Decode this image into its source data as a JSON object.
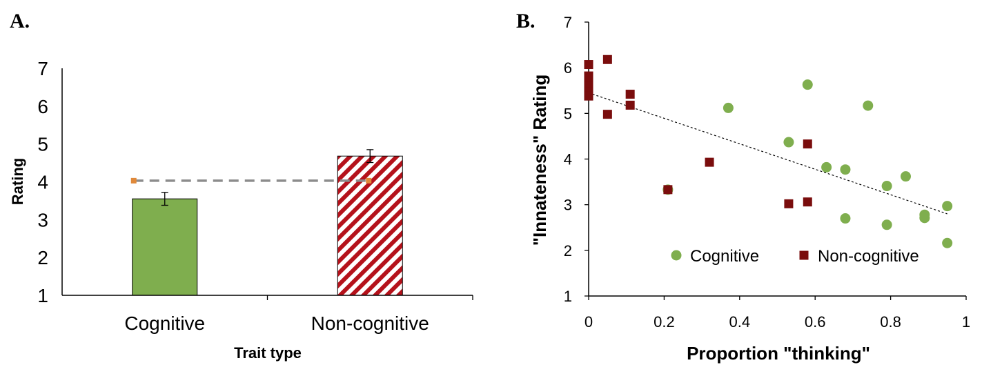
{
  "panels": {
    "a_label": "A.",
    "b_label": "B."
  },
  "chart_data": [
    {
      "type": "bar",
      "categories": [
        "Cognitive",
        "Non-cognitive"
      ],
      "values": [
        3.55,
        4.68
      ],
      "errors": [
        0.17,
        0.17
      ],
      "reference_line": {
        "values": [
          4.03,
          4.03
        ],
        "style": "dashed"
      },
      "xlabel": "Trait type",
      "ylabel": "Rating",
      "ylim": [
        1,
        7
      ],
      "yticks": [
        "1",
        "2",
        "3",
        "4",
        "5",
        "6",
        "7"
      ],
      "colors": {
        "cognitive": "#7fae4e",
        "non_cognitive_stripe": "#b5121b",
        "reference_marker": "#e0893a",
        "reference_line": "#8c8c8c"
      }
    },
    {
      "type": "scatter",
      "xlabel": "Proportion \"thinking\"",
      "ylabel": "\"Innateness\" Rating",
      "xlim": [
        0,
        1
      ],
      "ylim": [
        1,
        7
      ],
      "xticks": [
        "0",
        "0.2",
        "0.4",
        "0.6",
        "0.8",
        "1"
      ],
      "yticks": [
        "1",
        "2",
        "3",
        "4",
        "5",
        "6",
        "7"
      ],
      "legend_position": "bottom",
      "series": [
        {
          "name": "Cognitive",
          "color": "#7fae4e",
          "marker": "circle",
          "points": [
            [
              0.21,
              3.33
            ],
            [
              0.37,
              5.12
            ],
            [
              0.53,
              4.37
            ],
            [
              0.58,
              5.63
            ],
            [
              0.63,
              3.82
            ],
            [
              0.68,
              3.77
            ],
            [
              0.68,
              2.7
            ],
            [
              0.74,
              5.17
            ],
            [
              0.79,
              3.41
            ],
            [
              0.79,
              2.56
            ],
            [
              0.84,
              3.62
            ],
            [
              0.89,
              2.78
            ],
            [
              0.89,
              2.71
            ],
            [
              0.95,
              2.97
            ],
            [
              0.95,
              2.16
            ]
          ]
        },
        {
          "name": "Non-cognitive",
          "color": "#7a0d0d",
          "marker": "square",
          "points": [
            [
              0.0,
              6.07
            ],
            [
              0.0,
              5.82
            ],
            [
              0.0,
              5.7
            ],
            [
              0.0,
              5.6
            ],
            [
              0.0,
              5.48
            ],
            [
              0.0,
              5.38
            ],
            [
              0.05,
              6.18
            ],
            [
              0.05,
              4.98
            ],
            [
              0.11,
              5.42
            ],
            [
              0.11,
              5.18
            ],
            [
              0.21,
              3.33
            ],
            [
              0.32,
              3.93
            ],
            [
              0.53,
              3.02
            ],
            [
              0.58,
              4.33
            ],
            [
              0.58,
              3.06
            ]
          ]
        }
      ],
      "trendline": {
        "x": [
          0,
          0.95
        ],
        "y": [
          5.45,
          2.8
        ],
        "style": "dotted"
      }
    }
  ]
}
